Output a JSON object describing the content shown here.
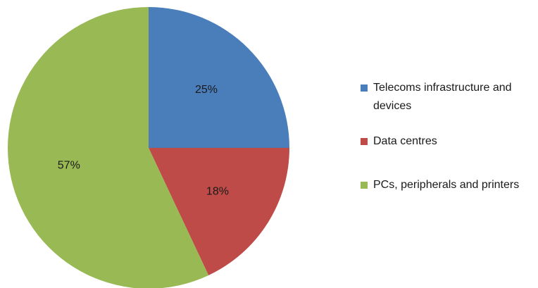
{
  "chart_data": {
    "type": "pie",
    "title": "",
    "slices": [
      {
        "label": "Telecoms infrastructure and devices",
        "value": 25,
        "display": "25%",
        "color": "#4a7ebb"
      },
      {
        "label": "Data centres",
        "value": 18,
        "display": "18%",
        "color": "#be4b48"
      },
      {
        "label": "PCs, peripherals and printers",
        "value": 57,
        "display": "57%",
        "color": "#98b954"
      }
    ],
    "start_angle_deg": 0,
    "direction": "clockwise",
    "legend_position": "right"
  },
  "legend": {
    "items": [
      {
        "label": "Telecoms infrastructure and devices",
        "color": "#4a7ebb"
      },
      {
        "label": "Data centres",
        "color": "#be4b48"
      },
      {
        "label": "PCs, peripherals and printers",
        "color": "#98b954"
      }
    ]
  }
}
